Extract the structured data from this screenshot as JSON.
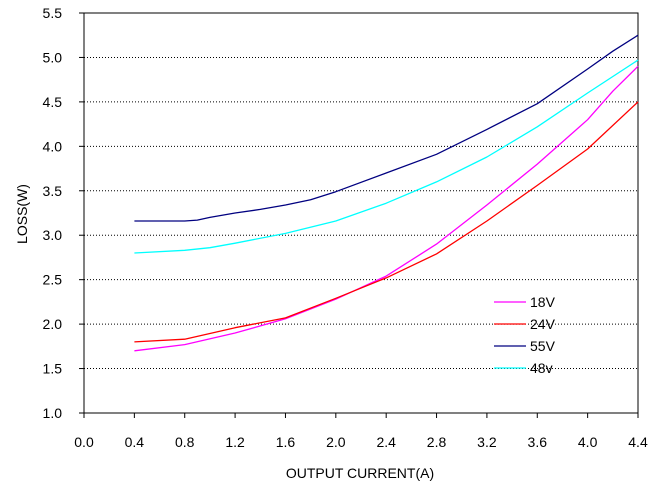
{
  "chart_data": {
    "type": "line",
    "xlabel": "OUTPUT CURRENT(A)",
    "ylabel": "LOSS(W)",
    "xlim": [
      0.0,
      4.4
    ],
    "ylim": [
      1.0,
      5.5
    ],
    "x_ticks": [
      "0.0",
      "0.4",
      "0.8",
      "1.2",
      "1.6",
      "2.0",
      "2.4",
      "2.8",
      "3.2",
      "3.6",
      "4.0",
      "4.4"
    ],
    "y_ticks": [
      "1.0",
      "1.5",
      "2.0",
      "2.5",
      "3.0",
      "3.5",
      "4.0",
      "4.5",
      "5.0",
      "5.5"
    ],
    "grid": "horizontal-dotted",
    "legend_position": "lower-right",
    "series": [
      {
        "name": "18V",
        "color": "#ff00ff",
        "x": [
          0.4,
          0.8,
          1.2,
          1.6,
          2.0,
          2.4,
          2.8,
          3.2,
          3.6,
          4.0,
          4.2,
          4.4
        ],
        "values": [
          1.7,
          1.77,
          1.9,
          2.06,
          2.28,
          2.54,
          2.9,
          3.34,
          3.8,
          4.3,
          4.62,
          4.9
        ]
      },
      {
        "name": "24V",
        "color": "#ff0000",
        "x": [
          0.4,
          0.8,
          1.2,
          1.6,
          2.0,
          2.4,
          2.8,
          3.2,
          3.6,
          4.0,
          4.4
        ],
        "values": [
          1.8,
          1.83,
          1.96,
          2.07,
          2.29,
          2.52,
          2.79,
          3.16,
          3.56,
          3.97,
          4.5
        ]
      },
      {
        "name": "55V",
        "color": "#000080",
        "x": [
          0.4,
          0.8,
          0.9,
          1.0,
          1.2,
          1.4,
          1.6,
          1.8,
          2.0,
          2.4,
          2.8,
          3.2,
          3.6,
          4.0,
          4.2,
          4.4
        ],
        "values": [
          3.16,
          3.16,
          3.17,
          3.2,
          3.25,
          3.29,
          3.34,
          3.4,
          3.49,
          3.7,
          3.91,
          4.19,
          4.48,
          4.87,
          5.07,
          5.25
        ]
      },
      {
        "name": "48v",
        "color": "#00ffff",
        "x": [
          0.4,
          0.8,
          1.0,
          1.2,
          1.6,
          2.0,
          2.4,
          2.8,
          3.2,
          3.6,
          4.0,
          4.4
        ],
        "values": [
          2.8,
          2.83,
          2.86,
          2.91,
          3.02,
          3.16,
          3.36,
          3.6,
          3.88,
          4.22,
          4.6,
          4.97
        ]
      }
    ]
  }
}
